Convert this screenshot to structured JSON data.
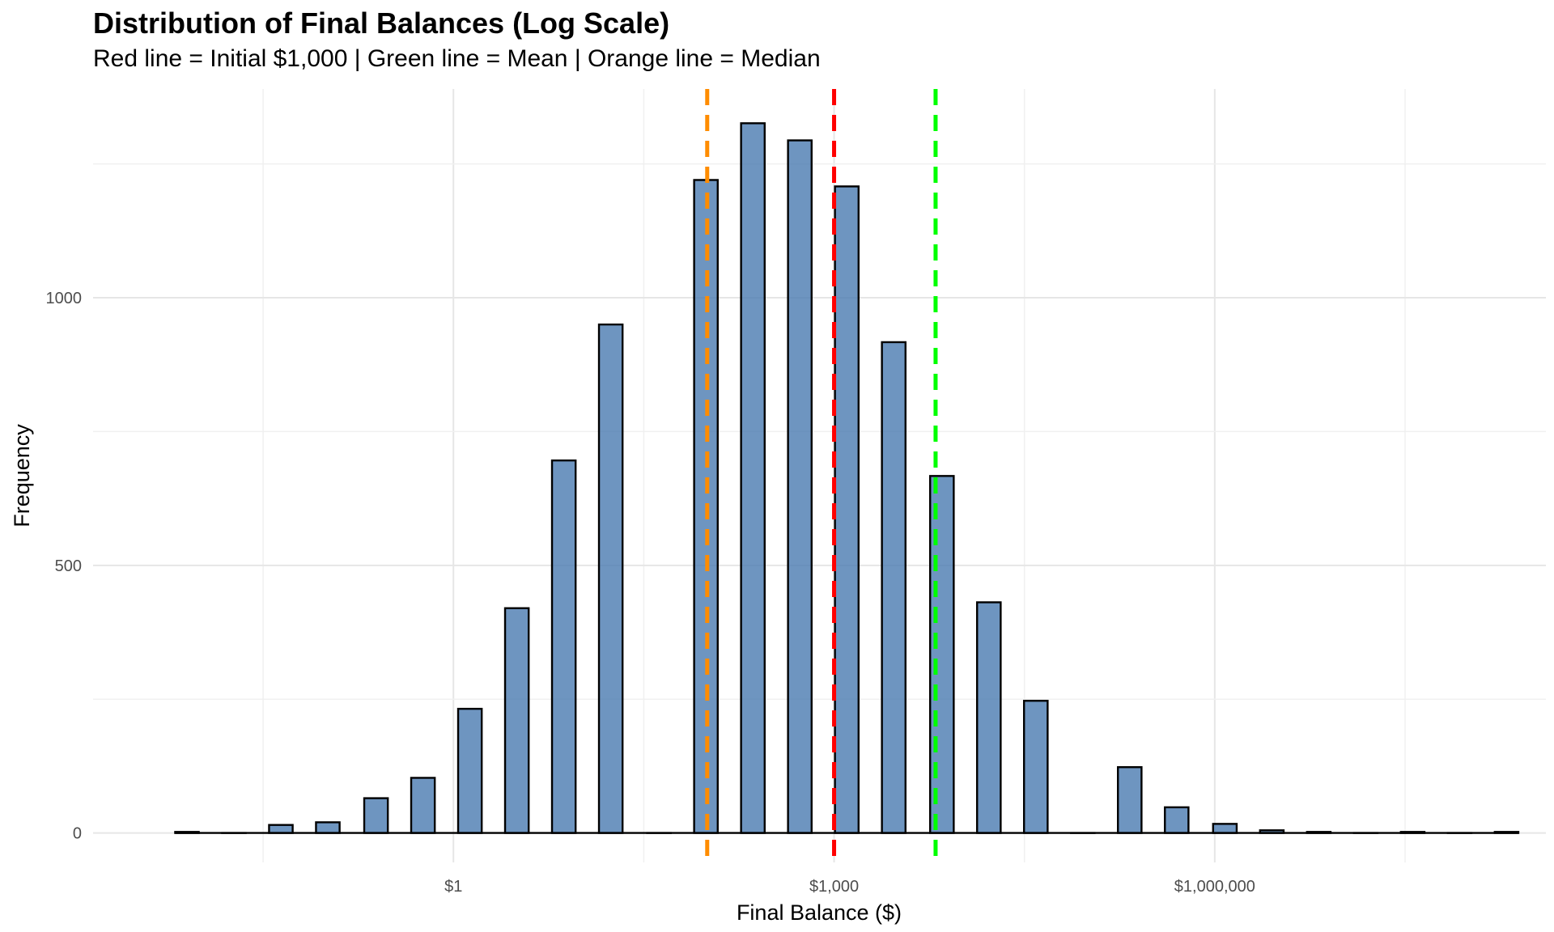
{
  "chart_data": {
    "type": "bar",
    "title": "Distribution of Final Balances (Log Scale)",
    "subtitle": "Red line = Initial $1,000 | Green line = Mean | Orange line = Median",
    "xlabel": "Final Balance ($)",
    "ylabel": "Frequency",
    "x_scale": "log10",
    "xlim_log10": [
      -2.84,
      8.61
    ],
    "ylim": [
      -55,
      1390
    ],
    "x_ticks": [
      {
        "log10": 0,
        "label": "$1"
      },
      {
        "log10": 3,
        "label": "$1,000"
      },
      {
        "log10": 6,
        "label": "$1,000,000"
      }
    ],
    "y_ticks": [
      {
        "value": 0,
        "label": "0"
      },
      {
        "value": 500,
        "label": "500"
      },
      {
        "value": 1000,
        "label": "1000"
      }
    ],
    "bin_width_log10": 0.372,
    "bins": [
      {
        "center_log10": -2.1,
        "count": 2
      },
      {
        "center_log10": -1.73,
        "count": 0
      },
      {
        "center_log10": -1.36,
        "count": 15
      },
      {
        "center_log10": -0.99,
        "count": 20
      },
      {
        "center_log10": -0.61,
        "count": 65
      },
      {
        "center_log10": -0.24,
        "count": 103
      },
      {
        "center_log10": 0.13,
        "count": 232
      },
      {
        "center_log10": 0.5,
        "count": 420
      },
      {
        "center_log10": 0.87,
        "count": 696
      },
      {
        "center_log10": 1.24,
        "count": 950
      },
      {
        "center_log10": 1.62,
        "count": 0
      },
      {
        "center_log10": 1.99,
        "count": 1220
      },
      {
        "center_log10": 2.36,
        "count": 1326
      },
      {
        "center_log10": 2.73,
        "count": 1294
      },
      {
        "center_log10": 3.1,
        "count": 1208
      },
      {
        "center_log10": 3.47,
        "count": 917
      },
      {
        "center_log10": 3.85,
        "count": 667
      },
      {
        "center_log10": 4.22,
        "count": 431
      },
      {
        "center_log10": 4.59,
        "count": 247
      },
      {
        "center_log10": 4.96,
        "count": 0
      },
      {
        "center_log10": 5.33,
        "count": 123
      },
      {
        "center_log10": 5.7,
        "count": 48
      },
      {
        "center_log10": 6.08,
        "count": 17
      },
      {
        "center_log10": 6.45,
        "count": 5
      },
      {
        "center_log10": 6.82,
        "count": 2
      },
      {
        "center_log10": 7.19,
        "count": 0
      },
      {
        "center_log10": 7.56,
        "count": 2
      },
      {
        "center_log10": 7.93,
        "count": 0
      },
      {
        "center_log10": 8.3,
        "count": 2
      }
    ],
    "reference_lines": [
      {
        "name": "Median",
        "log10": 2.0,
        "color": "#FF8C00"
      },
      {
        "name": "Initial $1,000",
        "log10": 3.0,
        "color": "#FF0000"
      },
      {
        "name": "Mean",
        "log10": 3.8,
        "color": "#00FF00"
      }
    ],
    "bar_fill": "#4A7AB0",
    "bar_outline": "#000000",
    "grid": true
  }
}
